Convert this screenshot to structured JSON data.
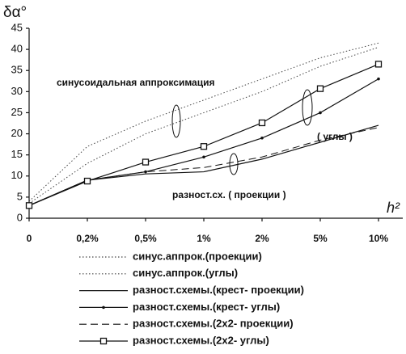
{
  "chart_data": {
    "type": "line",
    "y_label": "δα°",
    "x_label": "h²",
    "categories": [
      "0",
      "0,2%",
      "0,5%",
      "1%",
      "2%",
      "5%",
      "10%"
    ],
    "ylim": [
      0,
      45
    ],
    "yticks": [
      0,
      5,
      10,
      15,
      20,
      25,
      30,
      35,
      40,
      45
    ],
    "annotations": [
      "синусоидальная аппроксимация",
      "( углы )",
      "разност.сх. ( проекции )"
    ],
    "series": [
      {
        "name": "синус.аппрок.(проекции)",
        "color": "#444444",
        "line_style": "dotted",
        "values": [
          4,
          17,
          23,
          28,
          33,
          38,
          41.5
        ]
      },
      {
        "name": "синус.аппрок.(углы)",
        "color": "#444444",
        "line_style": "dotted",
        "values": [
          3.5,
          13,
          20,
          25,
          30,
          36,
          40.5
        ]
      },
      {
        "name": "разност.схемы.(крест- проекции)",
        "color": "#111111",
        "line_style": "solid",
        "values": [
          3,
          9,
          10.5,
          11,
          14,
          18,
          22
        ]
      },
      {
        "name": "разност.схемы.(крест- углы)",
        "color": "#111111",
        "line_style": "solid",
        "marker": "dot",
        "values": [
          3,
          9,
          11,
          14.5,
          19,
          25,
          33
        ]
      },
      {
        "name": "разност.схемы.(2x2- проекции)",
        "color": "#111111",
        "line_style": "dashed",
        "values": [
          3,
          9,
          11,
          12,
          14.5,
          18.5,
          21.5
        ]
      },
      {
        "name": "разност.схемы.(2x2- углы)",
        "color": "#111111",
        "line_style": "solid",
        "marker": "square",
        "values": [
          3,
          8.8,
          13.3,
          17,
          22.6,
          30.7,
          36.5
        ]
      }
    ]
  }
}
